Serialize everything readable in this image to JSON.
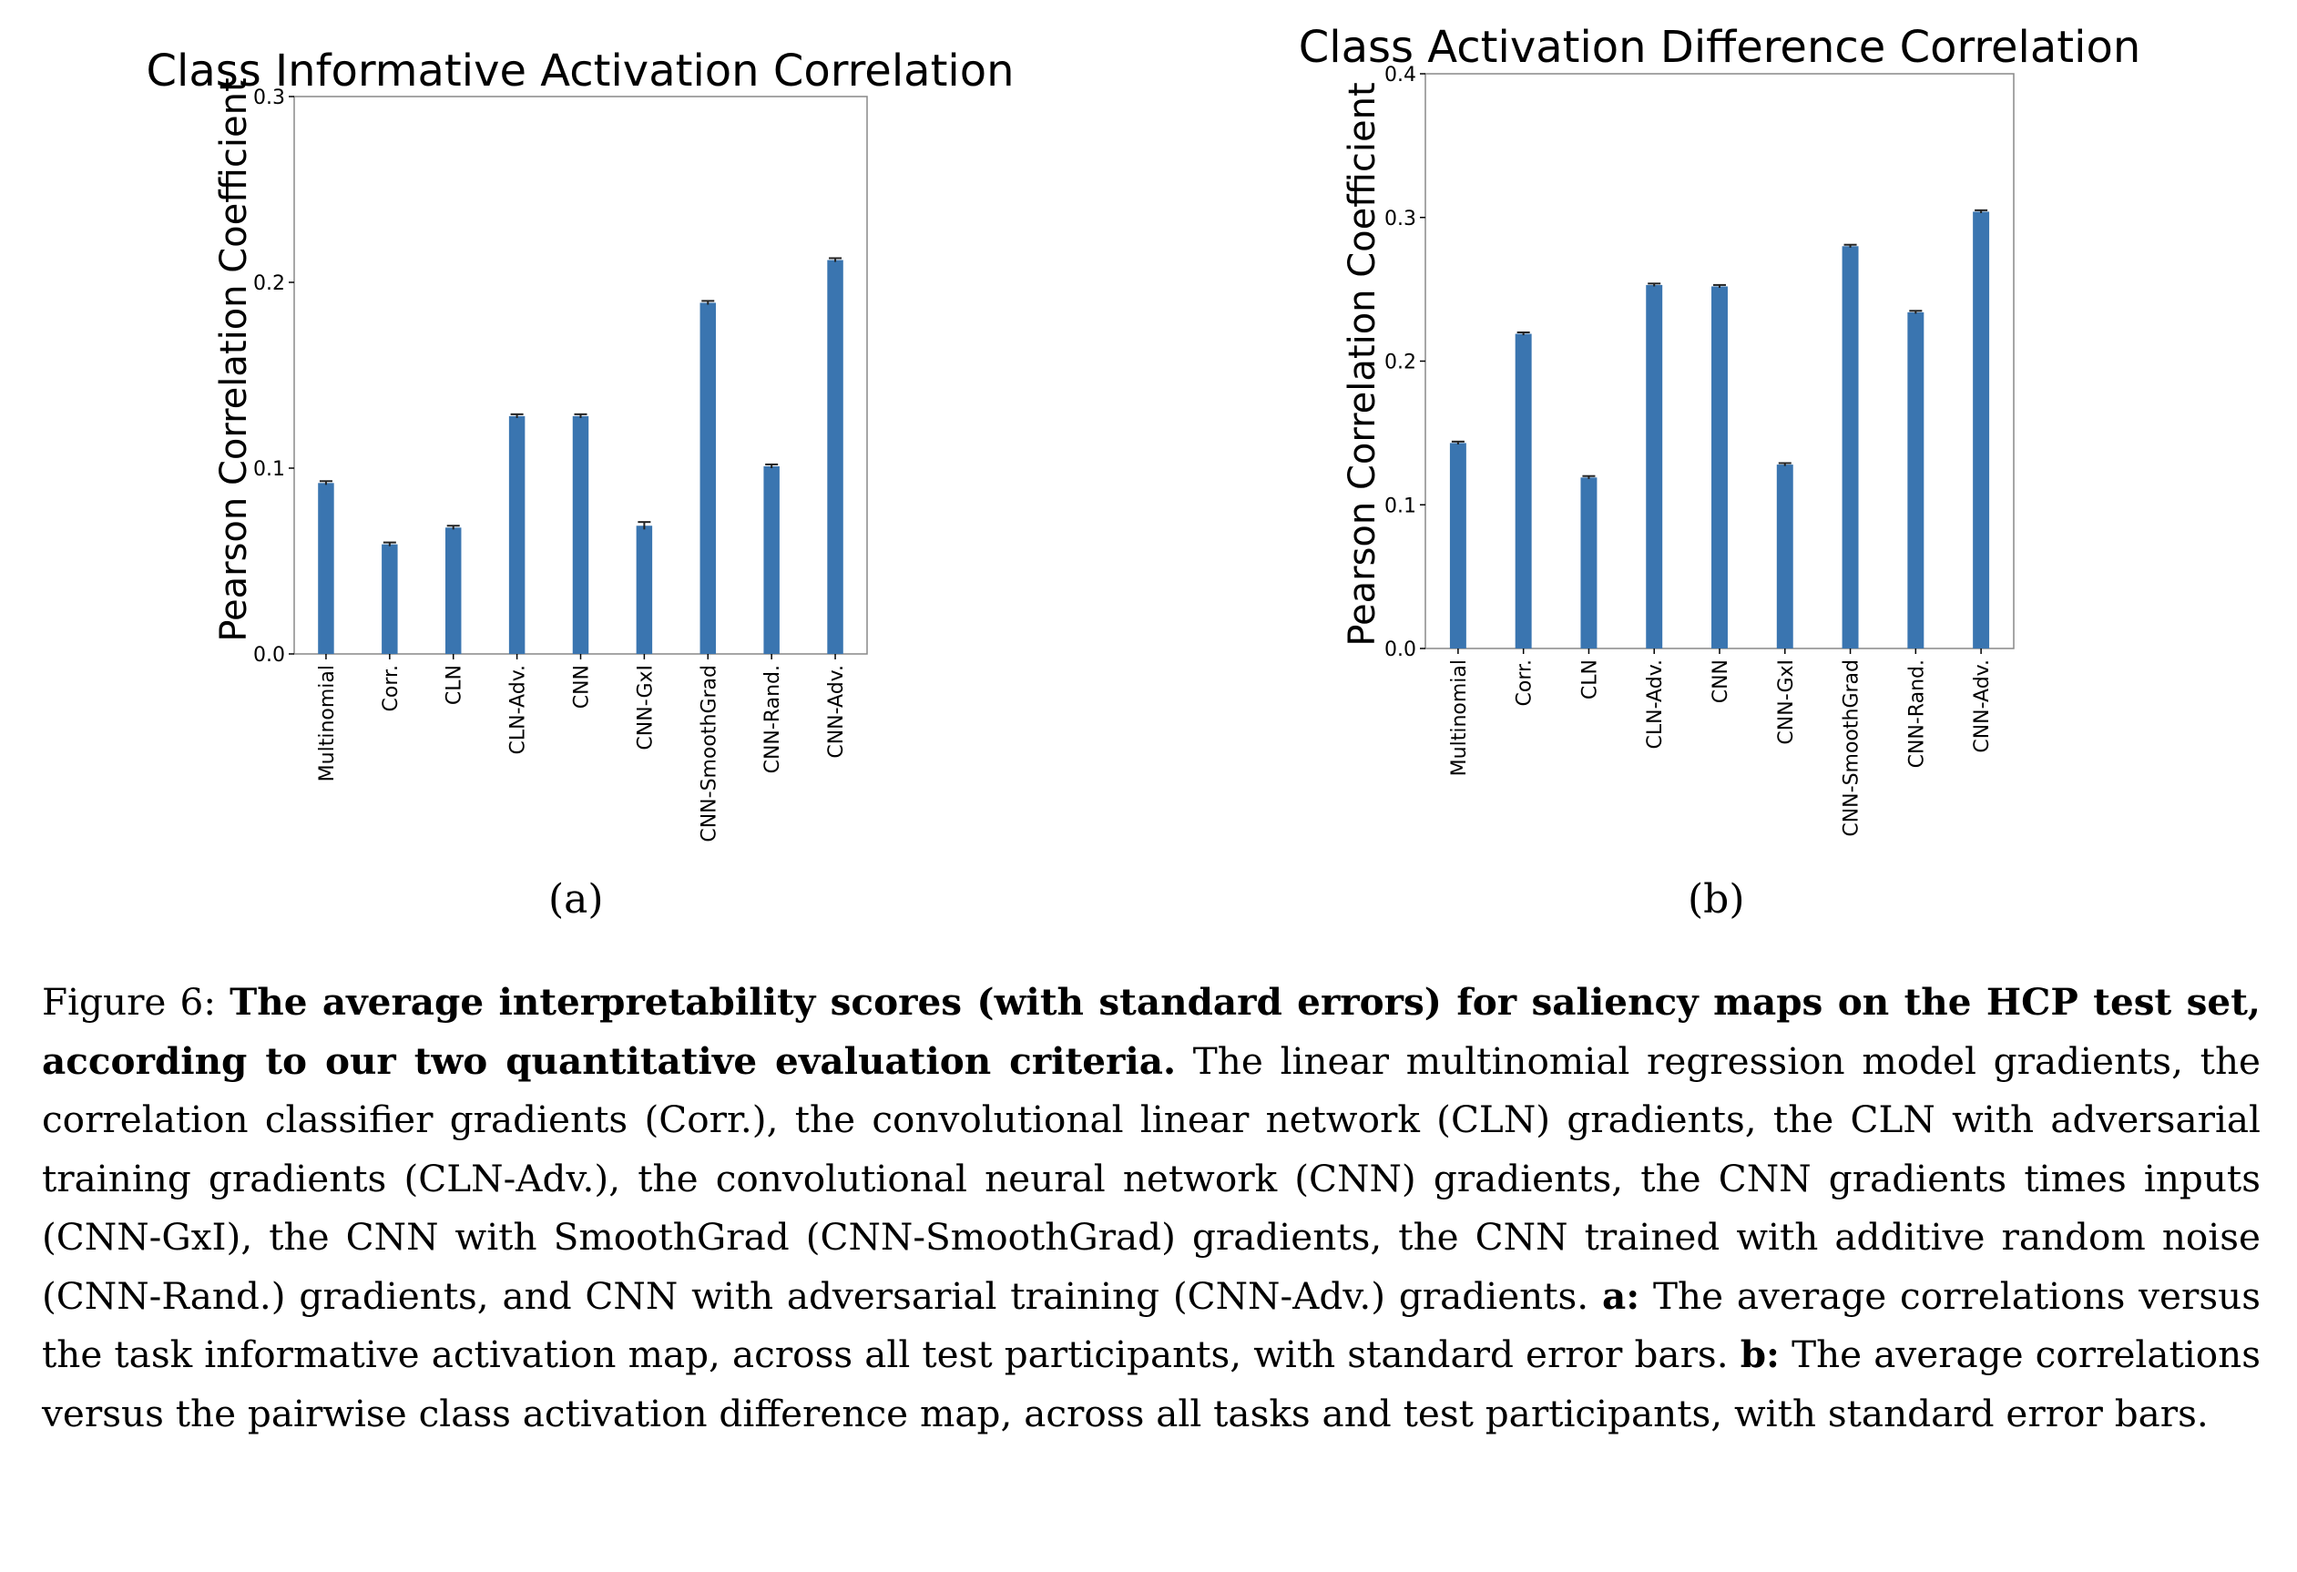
{
  "charts": [
    {
      "title": "Class Informative Activation Correlation",
      "ylabel": "Pearson Correlation Coefficient",
      "sublabel": "(a)"
    },
    {
      "title": "Class Activation Difference Correlation",
      "ylabel": "Pearson Correlation Coefficient",
      "sublabel": "(b)"
    }
  ],
  "chart_data": [
    {
      "type": "bar",
      "title": "Class Informative Activation Correlation",
      "xlabel": "",
      "ylabel": "Pearson Correlation Coefficient",
      "categories": [
        "Multinomial",
        "Corr.",
        "CLN",
        "CLN-Adv.",
        "CNN",
        "CNN-GxI",
        "CNN-SmoothGrad",
        "CNN-Rand.",
        "CNN-Adv."
      ],
      "values": [
        0.092,
        0.059,
        0.068,
        0.128,
        0.128,
        0.069,
        0.189,
        0.101,
        0.212
      ],
      "errors": [
        0.001,
        0.001,
        0.001,
        0.001,
        0.001,
        0.002,
        0.001,
        0.001,
        0.001
      ],
      "ylim": [
        0,
        0.3
      ],
      "yticks": [
        "0.0",
        "0.1",
        "0.2",
        "0.3"
      ],
      "bar_color": "#3a75b0",
      "grid": false
    },
    {
      "type": "bar",
      "title": "Class Activation Difference Correlation",
      "xlabel": "",
      "ylabel": "Pearson Correlation Coefficient",
      "categories": [
        "Multinomial",
        "Corr.",
        "CLN",
        "CLN-Adv.",
        "CNN",
        "CNN-GxI",
        "CNN-SmoothGrad",
        "CNN-Rand.",
        "CNN-Adv."
      ],
      "values": [
        0.143,
        0.219,
        0.119,
        0.253,
        0.252,
        0.128,
        0.28,
        0.234,
        0.304
      ],
      "errors": [
        0.001,
        0.001,
        0.001,
        0.001,
        0.001,
        0.001,
        0.001,
        0.001,
        0.001
      ],
      "ylim": [
        0,
        0.4
      ],
      "yticks": [
        "0.0",
        "0.1",
        "0.2",
        "0.3",
        "0.4"
      ],
      "bar_color": "#3a75b0",
      "grid": false
    }
  ],
  "caption": {
    "figure_label": "Figure 6:",
    "bold_title": "The average interpretability scores (with standard errors) for saliency maps on the HCP test set, according to our two quantitative evaluation criteria.",
    "body": "The linear multinomial regression model gradients, the correlation classifier gradients (Corr.), the convolutional linear network (CLN) gradients, the CLN with adversarial training gradients (CLN-Adv.), the convolutional neural network (CNN) gradients, the CNN gradients times inputs (CNN-GxI), the CNN with SmoothGrad (CNN-SmoothGrad) gradients, the CNN trained with additive random noise (CNN-Rand.) gradients, and CNN with adversarial training (CNN-Adv.) gradients.",
    "a_label": "a:",
    "a_text": "The average correlations versus the task informative activation map, across all test participants, with standard error bars.",
    "b_label": "b:",
    "b_text": "The average correlations versus the pairwise class activation difference map, across all tasks and test participants, with standard error bars."
  }
}
